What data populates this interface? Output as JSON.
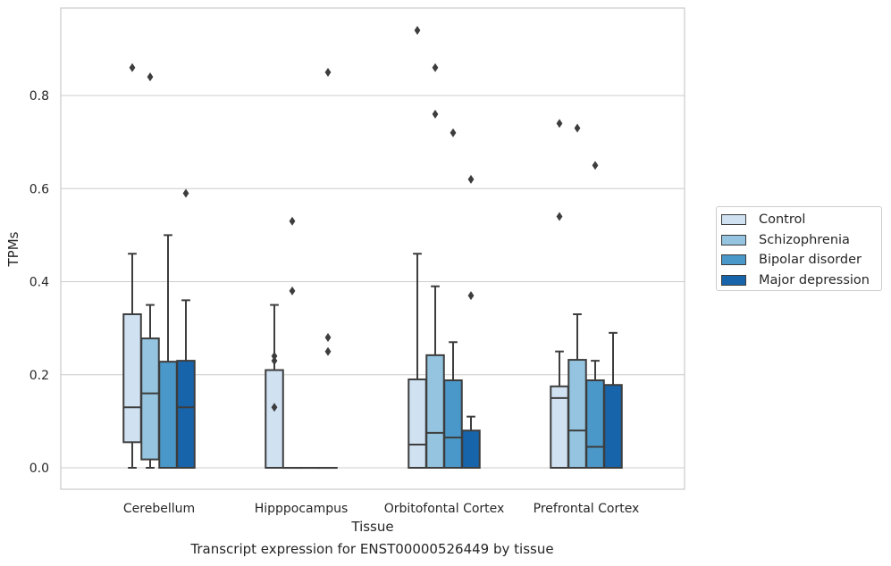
{
  "chart_data": {
    "type": "box",
    "title": "",
    "caption": "Transcript expression for ENST00000526449 by tissue",
    "xlabel": "Tissue",
    "ylabel": "TPMs",
    "ylim": [
      -0.045,
      0.99
    ],
    "yticks": [
      0.0,
      0.2,
      0.4,
      0.6,
      0.8
    ],
    "ytick_labels": [
      "0.0",
      "0.2",
      "0.4",
      "0.6",
      "0.8"
    ],
    "grid": "horizontal",
    "legend_position": "right",
    "categories": [
      "Cerebellum",
      "Hipppocampus",
      "Orbitofontal Cortex",
      "Prefrontal Cortex"
    ],
    "series": [
      {
        "name": "Control",
        "color": "#d0e1f2",
        "boxes": [
          {
            "q1": 0.055,
            "median": 0.13,
            "q3": 0.33,
            "whisker_low": 0.0,
            "whisker_high": 0.46,
            "outliers": [
              0.86
            ]
          },
          {
            "q1": 0.0,
            "median": 0.0,
            "q3": 0.21,
            "whisker_low": 0.0,
            "whisker_high": 0.35,
            "outliers": [
              0.13,
              0.23,
              0.24
            ]
          },
          {
            "q1": 0.0,
            "median": 0.05,
            "q3": 0.19,
            "whisker_low": 0.0,
            "whisker_high": 0.46,
            "outliers": [
              0.94
            ]
          },
          {
            "q1": 0.0,
            "median": 0.15,
            "q3": 0.175,
            "whisker_low": 0.0,
            "whisker_high": 0.25,
            "outliers": [
              0.54,
              0.74
            ]
          }
        ]
      },
      {
        "name": "Schizophrenia",
        "color": "#94c4df",
        "boxes": [
          {
            "q1": 0.018,
            "median": 0.16,
            "q3": 0.278,
            "whisker_low": 0.0,
            "whisker_high": 0.35,
            "outliers": [
              0.84
            ]
          },
          {
            "q1": 0.0,
            "median": 0.0,
            "q3": 0.0,
            "whisker_low": 0.0,
            "whisker_high": 0.0,
            "outliers": [
              0.38,
              0.53
            ]
          },
          {
            "q1": 0.0,
            "median": 0.075,
            "q3": 0.242,
            "whisker_low": 0.0,
            "whisker_high": 0.39,
            "outliers": [
              0.76,
              0.86
            ]
          },
          {
            "q1": 0.0,
            "median": 0.08,
            "q3": 0.232,
            "whisker_low": 0.0,
            "whisker_high": 0.33,
            "outliers": [
              0.73
            ]
          }
        ]
      },
      {
        "name": "Bipolar disorder",
        "color": "#4a98c9",
        "boxes": [
          {
            "q1": 0.0,
            "median": 0.0,
            "q3": 0.228,
            "whisker_low": 0.0,
            "whisker_high": 0.5,
            "outliers": []
          },
          {
            "q1": 0.0,
            "median": 0.0,
            "q3": 0.0,
            "whisker_low": 0.0,
            "whisker_high": 0.0,
            "outliers": []
          },
          {
            "q1": 0.0,
            "median": 0.065,
            "q3": 0.188,
            "whisker_low": 0.0,
            "whisker_high": 0.27,
            "outliers": [
              0.72
            ]
          },
          {
            "q1": 0.0,
            "median": 0.045,
            "q3": 0.188,
            "whisker_low": 0.0,
            "whisker_high": 0.23,
            "outliers": [
              0.65
            ]
          }
        ]
      },
      {
        "name": "Major depression",
        "color": "#1764ab",
        "boxes": [
          {
            "q1": 0.0,
            "median": 0.13,
            "q3": 0.23,
            "whisker_low": 0.0,
            "whisker_high": 0.36,
            "outliers": [
              0.59
            ]
          },
          {
            "q1": 0.0,
            "median": 0.0,
            "q3": 0.0,
            "whisker_low": 0.0,
            "whisker_high": 0.0,
            "outliers": [
              0.25,
              0.28,
              0.85
            ]
          },
          {
            "q1": 0.0,
            "median": 0.0,
            "q3": 0.08,
            "whisker_low": 0.0,
            "whisker_high": 0.11,
            "outliers": [
              0.37,
              0.62
            ]
          },
          {
            "q1": 0.0,
            "median": 0.0,
            "q3": 0.178,
            "whisker_low": 0.0,
            "whisker_high": 0.29,
            "outliers": []
          }
        ]
      }
    ]
  }
}
